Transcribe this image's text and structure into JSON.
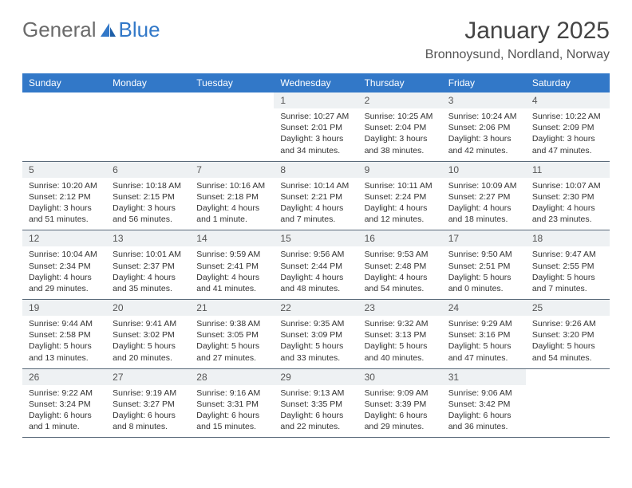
{
  "logo": {
    "part1": "General",
    "part2": "Blue"
  },
  "title": "January 2025",
  "location": "Bronnoysund, Nordland, Norway",
  "colors": {
    "header_bg": "#3278c8",
    "header_text": "#ffffff",
    "daynum_bg": "#eef1f3",
    "border": "#5a6a7a",
    "text": "#333333",
    "logo_gray": "#6b6b6b",
    "logo_blue": "#3278c8"
  },
  "day_headers": [
    "Sunday",
    "Monday",
    "Tuesday",
    "Wednesday",
    "Thursday",
    "Friday",
    "Saturday"
  ],
  "weeks": [
    [
      {
        "empty": true
      },
      {
        "empty": true
      },
      {
        "empty": true
      },
      {
        "num": "1",
        "l1": "Sunrise: 10:27 AM",
        "l2": "Sunset: 2:01 PM",
        "l3": "Daylight: 3 hours",
        "l4": "and 34 minutes."
      },
      {
        "num": "2",
        "l1": "Sunrise: 10:25 AM",
        "l2": "Sunset: 2:04 PM",
        "l3": "Daylight: 3 hours",
        "l4": "and 38 minutes."
      },
      {
        "num": "3",
        "l1": "Sunrise: 10:24 AM",
        "l2": "Sunset: 2:06 PM",
        "l3": "Daylight: 3 hours",
        "l4": "and 42 minutes."
      },
      {
        "num": "4",
        "l1": "Sunrise: 10:22 AM",
        "l2": "Sunset: 2:09 PM",
        "l3": "Daylight: 3 hours",
        "l4": "and 47 minutes."
      }
    ],
    [
      {
        "num": "5",
        "l1": "Sunrise: 10:20 AM",
        "l2": "Sunset: 2:12 PM",
        "l3": "Daylight: 3 hours",
        "l4": "and 51 minutes."
      },
      {
        "num": "6",
        "l1": "Sunrise: 10:18 AM",
        "l2": "Sunset: 2:15 PM",
        "l3": "Daylight: 3 hours",
        "l4": "and 56 minutes."
      },
      {
        "num": "7",
        "l1": "Sunrise: 10:16 AM",
        "l2": "Sunset: 2:18 PM",
        "l3": "Daylight: 4 hours",
        "l4": "and 1 minute."
      },
      {
        "num": "8",
        "l1": "Sunrise: 10:14 AM",
        "l2": "Sunset: 2:21 PM",
        "l3": "Daylight: 4 hours",
        "l4": "and 7 minutes."
      },
      {
        "num": "9",
        "l1": "Sunrise: 10:11 AM",
        "l2": "Sunset: 2:24 PM",
        "l3": "Daylight: 4 hours",
        "l4": "and 12 minutes."
      },
      {
        "num": "10",
        "l1": "Sunrise: 10:09 AM",
        "l2": "Sunset: 2:27 PM",
        "l3": "Daylight: 4 hours",
        "l4": "and 18 minutes."
      },
      {
        "num": "11",
        "l1": "Sunrise: 10:07 AM",
        "l2": "Sunset: 2:30 PM",
        "l3": "Daylight: 4 hours",
        "l4": "and 23 minutes."
      }
    ],
    [
      {
        "num": "12",
        "l1": "Sunrise: 10:04 AM",
        "l2": "Sunset: 2:34 PM",
        "l3": "Daylight: 4 hours",
        "l4": "and 29 minutes."
      },
      {
        "num": "13",
        "l1": "Sunrise: 10:01 AM",
        "l2": "Sunset: 2:37 PM",
        "l3": "Daylight: 4 hours",
        "l4": "and 35 minutes."
      },
      {
        "num": "14",
        "l1": "Sunrise: 9:59 AM",
        "l2": "Sunset: 2:41 PM",
        "l3": "Daylight: 4 hours",
        "l4": "and 41 minutes."
      },
      {
        "num": "15",
        "l1": "Sunrise: 9:56 AM",
        "l2": "Sunset: 2:44 PM",
        "l3": "Daylight: 4 hours",
        "l4": "and 48 minutes."
      },
      {
        "num": "16",
        "l1": "Sunrise: 9:53 AM",
        "l2": "Sunset: 2:48 PM",
        "l3": "Daylight: 4 hours",
        "l4": "and 54 minutes."
      },
      {
        "num": "17",
        "l1": "Sunrise: 9:50 AM",
        "l2": "Sunset: 2:51 PM",
        "l3": "Daylight: 5 hours",
        "l4": "and 0 minutes."
      },
      {
        "num": "18",
        "l1": "Sunrise: 9:47 AM",
        "l2": "Sunset: 2:55 PM",
        "l3": "Daylight: 5 hours",
        "l4": "and 7 minutes."
      }
    ],
    [
      {
        "num": "19",
        "l1": "Sunrise: 9:44 AM",
        "l2": "Sunset: 2:58 PM",
        "l3": "Daylight: 5 hours",
        "l4": "and 13 minutes."
      },
      {
        "num": "20",
        "l1": "Sunrise: 9:41 AM",
        "l2": "Sunset: 3:02 PM",
        "l3": "Daylight: 5 hours",
        "l4": "and 20 minutes."
      },
      {
        "num": "21",
        "l1": "Sunrise: 9:38 AM",
        "l2": "Sunset: 3:05 PM",
        "l3": "Daylight: 5 hours",
        "l4": "and 27 minutes."
      },
      {
        "num": "22",
        "l1": "Sunrise: 9:35 AM",
        "l2": "Sunset: 3:09 PM",
        "l3": "Daylight: 5 hours",
        "l4": "and 33 minutes."
      },
      {
        "num": "23",
        "l1": "Sunrise: 9:32 AM",
        "l2": "Sunset: 3:13 PM",
        "l3": "Daylight: 5 hours",
        "l4": "and 40 minutes."
      },
      {
        "num": "24",
        "l1": "Sunrise: 9:29 AM",
        "l2": "Sunset: 3:16 PM",
        "l3": "Daylight: 5 hours",
        "l4": "and 47 minutes."
      },
      {
        "num": "25",
        "l1": "Sunrise: 9:26 AM",
        "l2": "Sunset: 3:20 PM",
        "l3": "Daylight: 5 hours",
        "l4": "and 54 minutes."
      }
    ],
    [
      {
        "num": "26",
        "l1": "Sunrise: 9:22 AM",
        "l2": "Sunset: 3:24 PM",
        "l3": "Daylight: 6 hours",
        "l4": "and 1 minute."
      },
      {
        "num": "27",
        "l1": "Sunrise: 9:19 AM",
        "l2": "Sunset: 3:27 PM",
        "l3": "Daylight: 6 hours",
        "l4": "and 8 minutes."
      },
      {
        "num": "28",
        "l1": "Sunrise: 9:16 AM",
        "l2": "Sunset: 3:31 PM",
        "l3": "Daylight: 6 hours",
        "l4": "and 15 minutes."
      },
      {
        "num": "29",
        "l1": "Sunrise: 9:13 AM",
        "l2": "Sunset: 3:35 PM",
        "l3": "Daylight: 6 hours",
        "l4": "and 22 minutes."
      },
      {
        "num": "30",
        "l1": "Sunrise: 9:09 AM",
        "l2": "Sunset: 3:39 PM",
        "l3": "Daylight: 6 hours",
        "l4": "and 29 minutes."
      },
      {
        "num": "31",
        "l1": "Sunrise: 9:06 AM",
        "l2": "Sunset: 3:42 PM",
        "l3": "Daylight: 6 hours",
        "l4": "and 36 minutes."
      },
      {
        "empty": true
      }
    ]
  ]
}
